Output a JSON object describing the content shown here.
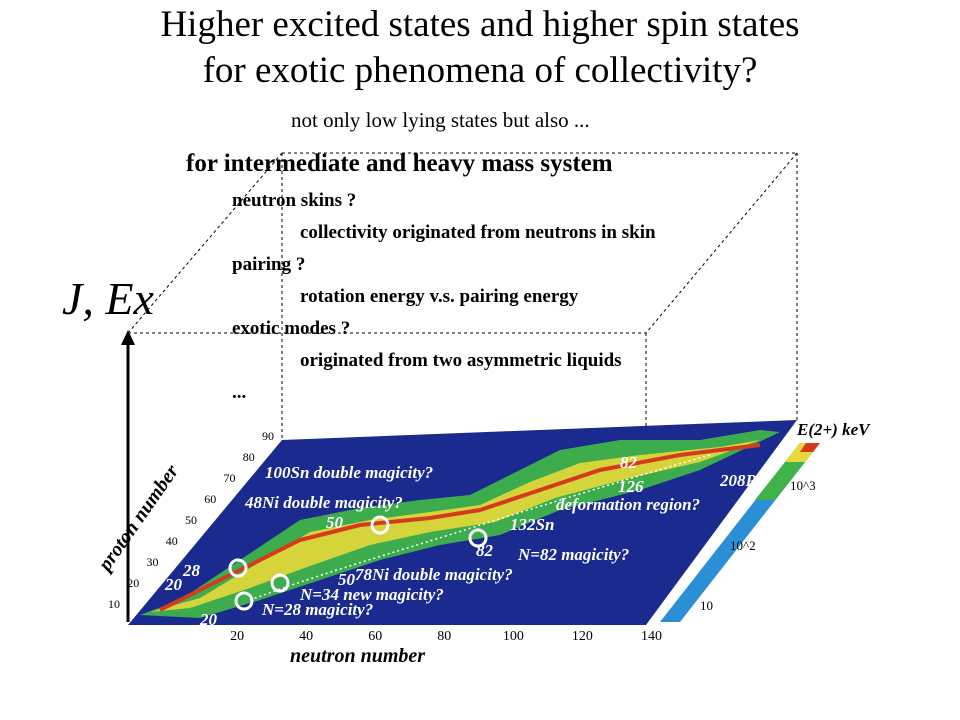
{
  "slide": {
    "title_line1": "Higher excited states and higher spin states",
    "title_line2": "for exotic phenomena of collectivity?",
    "subtitle": "not only low lying states but also ...",
    "heading": "for intermediate and heavy mass system",
    "items": [
      {
        "text": "neutron skins ?",
        "level": 1
      },
      {
        "text": "collectivity originated from neutrons in skin",
        "level": 2
      },
      {
        "text": "pairing ?",
        "level": 1
      },
      {
        "text": "rotation energy v.s. pairing energy",
        "level": 2
      },
      {
        "text": "exotic modes ?",
        "level": 1
      },
      {
        "text": "originated from two asymmetric liquids",
        "level": 2
      },
      {
        "text": "...",
        "level": 1
      }
    ],
    "vertical_axis_label": "J, Ex"
  },
  "chart_data": {
    "type": "heatmap",
    "xlabel": "neutron number",
    "ylabel": "proton number",
    "colorbar_label": "E(2+) keV",
    "x_ticks": [
      20,
      40,
      60,
      80,
      100,
      120,
      140
    ],
    "y_ticks": [
      10,
      20,
      30,
      40,
      50,
      60,
      70,
      80,
      90
    ],
    "colorbar_ticks": [
      "10",
      "10^2",
      "10^3"
    ],
    "annotations": [
      "100Sn double magicity?",
      "48Ni double magicity?",
      "78Ni double magicity?",
      "N=34 new magicity?",
      "N=28 magicity?",
      "132Sn",
      "N=82 magicity?",
      "deformation region?",
      "208Pb"
    ],
    "magic_labels": [
      "82",
      "126",
      "50",
      "50",
      "82",
      "28",
      "20",
      "20"
    ]
  },
  "colors": {
    "map_background": "#1a2a8f",
    "band_green": "#3fb34a",
    "band_yellow": "#e6d93a",
    "band_red": "#d63a1e"
  }
}
